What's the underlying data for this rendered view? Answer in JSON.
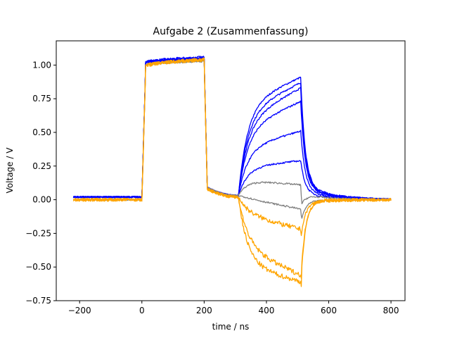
{
  "chart_data": {
    "type": "line",
    "title": "Aufgabe 2 (Zusammenfassung)",
    "xlabel": "time / ns",
    "ylabel": "Voltage / V",
    "xlim": [
      -275,
      845
    ],
    "ylim": [
      -0.75,
      1.18
    ],
    "xticks": [
      -200,
      0,
      200,
      400,
      600,
      800
    ],
    "yticks": [
      -0.75,
      -0.5,
      -0.25,
      0.0,
      0.25,
      0.5,
      0.75,
      1.0
    ],
    "xtick_labels": [
      "−200",
      "0",
      "200",
      "400",
      "600",
      "800"
    ],
    "ytick_labels": [
      "−0.75",
      "−0.50",
      "−0.25",
      "0.00",
      "0.25",
      "0.50",
      "0.75",
      "1.00"
    ],
    "grid": false,
    "legend": "none",
    "pulse": {
      "rise_x": 0,
      "fall_x": 200,
      "second_start_x": 310,
      "second_end_x": 510,
      "end_x": 800
    },
    "series": [
      {
        "color": "#0000ff",
        "baseline": 0.02,
        "high_start": 1.02,
        "high_end": 1.06,
        "settle": 0.03,
        "plateau_start": 0.7,
        "plateau_end": 0.91,
        "after": 0.12
      },
      {
        "color": "#0000ff",
        "baseline": 0.02,
        "high_start": 1.02,
        "high_end": 1.05,
        "settle": 0.03,
        "plateau_start": 0.64,
        "plateau_end": 0.87,
        "after": 0.11
      },
      {
        "color": "#0000ff",
        "baseline": 0.02,
        "high_start": 1.02,
        "high_end": 1.05,
        "settle": 0.03,
        "plateau_start": 0.58,
        "plateau_end": 0.83,
        "after": 0.1
      },
      {
        "color": "#0000ff",
        "baseline": 0.02,
        "high_start": 1.02,
        "high_end": 1.05,
        "settle": 0.03,
        "plateau_start": 0.52,
        "plateau_end": 0.73,
        "after": 0.09
      },
      {
        "color": "#0000ff",
        "baseline": 0.02,
        "high_start": 1.02,
        "high_end": 1.04,
        "settle": 0.03,
        "plateau_start": 0.38,
        "plateau_end": 0.51,
        "after": 0.07
      },
      {
        "color": "#0000ff",
        "baseline": 0.02,
        "high_start": 1.02,
        "high_end": 1.04,
        "settle": 0.03,
        "plateau_start": 0.24,
        "plateau_end": 0.29,
        "after": 0.05
      },
      {
        "color": "#808080",
        "baseline": 0.0,
        "high_start": 1.0,
        "high_end": 1.03,
        "settle": 0.03,
        "plateau_start": 0.15,
        "plateau_end": 0.11,
        "after": 0.04,
        "dip": -0.05
      },
      {
        "color": "#808080",
        "baseline": 0.0,
        "high_start": 1.0,
        "high_end": 1.03,
        "settle": 0.03,
        "plateau_start": 0.02,
        "plateau_end": -0.07,
        "after": -0.01,
        "dip": -0.18
      },
      {
        "color": "#ffa500",
        "baseline": 0.0,
        "high_start": 0.99,
        "high_end": 1.04,
        "settle": 0.02,
        "plateau_start": -0.1,
        "plateau_end": -0.22,
        "after": -0.02,
        "dip": -0.3
      },
      {
        "color": "#ffa500",
        "baseline": 0.0,
        "high_start": 0.99,
        "high_end": 1.04,
        "settle": 0.02,
        "plateau_start": -0.35,
        "plateau_end": -0.56,
        "after": -0.01,
        "dip": -0.62
      },
      {
        "color": "#ffa500",
        "baseline": 0.0,
        "high_start": 0.99,
        "high_end": 1.04,
        "settle": 0.02,
        "plateau_start": -0.48,
        "plateau_end": -0.61,
        "after": -0.01,
        "dip": -0.66
      }
    ]
  }
}
